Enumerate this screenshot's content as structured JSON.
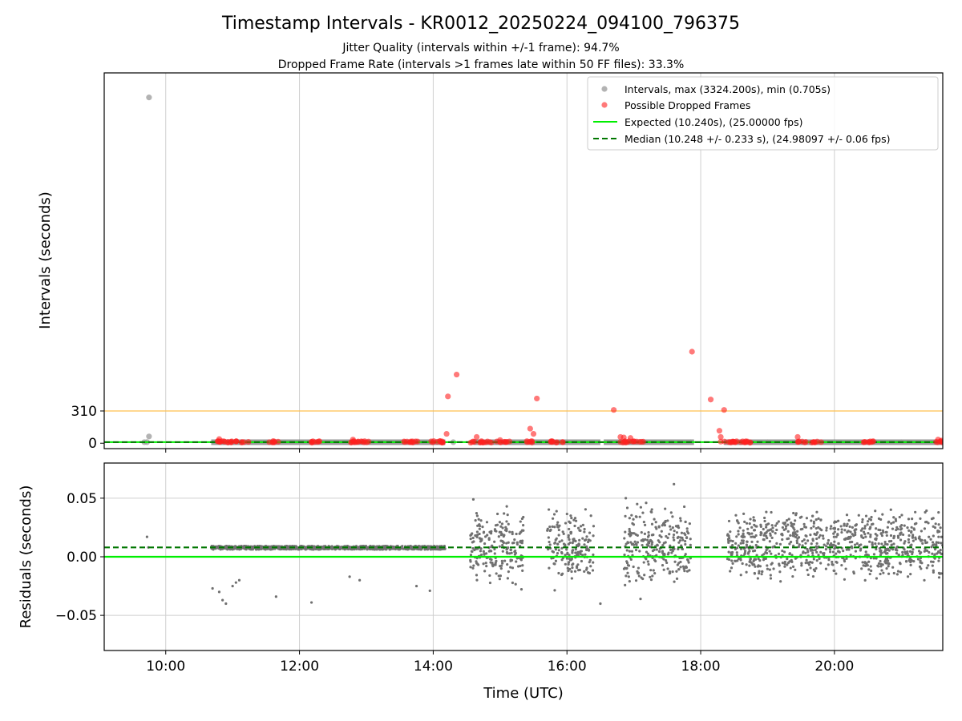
{
  "figure": {
    "title": "Timestamp Intervals - KR0012_20250224_094100_796375",
    "subtitle_1": "Jitter Quality (intervals within +/-1 frame): 94.7%",
    "subtitle_2": "Dropped Frame Rate (intervals >1 frames late within 50 FF files): 33.3%"
  },
  "chart_data": [
    {
      "type": "scatter",
      "name": "intervals",
      "xlabel": "",
      "ylabel": "Intervals (seconds)",
      "x_unit": "hours UTC",
      "xlim": [
        9.08,
        21.62
      ],
      "ylim": [
        -52,
        3560
      ],
      "yticks": [
        0,
        310
      ],
      "ytick_labels": [
        "0",
        "310"
      ],
      "threshold_line": {
        "y": 310,
        "color": "#ffc04d"
      },
      "grid": "x",
      "legend_position": "top-right",
      "series": [
        {
          "name": "Intervals, max (3324.200s), min (0.705s)",
          "color": "#999999",
          "points": [
            [
              9.75,
              3324.2
            ],
            [
              9.72,
              10.3
            ],
            [
              9.75,
              65.0
            ],
            [
              9.68,
              10.2
            ],
            [
              11.0,
              10.2
            ],
            [
              12.0,
              10.2
            ],
            [
              13.0,
              10.2
            ],
            [
              14.3,
              10.2
            ],
            [
              15.0,
              10.2
            ],
            [
              16.0,
              10.2
            ],
            [
              17.0,
              10.2
            ],
            [
              17.85,
              10.2
            ],
            [
              19.0,
              10.2
            ],
            [
              20.0,
              10.2
            ],
            [
              21.0,
              10.2
            ]
          ],
          "segments": [
            [
              10.68,
              14.18
            ],
            [
              14.6,
              16.5
            ],
            [
              16.55,
              17.9
            ],
            [
              18.35,
              21.62
            ]
          ]
        },
        {
          "name": "Possible Dropped Frames",
          "color": "#ff2020",
          "points": [
            [
              10.8,
              40
            ],
            [
              11.55,
              10
            ],
            [
              12.8,
              35
            ],
            [
              13.65,
              10
            ],
            [
              14.1,
              20
            ],
            [
              14.2,
              90
            ],
            [
              14.22,
              450
            ],
            [
              14.35,
              660
            ],
            [
              14.65,
              60
            ],
            [
              15.0,
              30
            ],
            [
              15.45,
              140
            ],
            [
              15.5,
              90
            ],
            [
              15.55,
              430
            ],
            [
              15.85,
              10
            ],
            [
              16.7,
              320
            ],
            [
              16.8,
              60
            ],
            [
              16.85,
              55
            ],
            [
              16.95,
              50
            ],
            [
              17.87,
              880
            ],
            [
              18.15,
              420
            ],
            [
              18.28,
              120
            ],
            [
              18.3,
              60
            ],
            [
              18.35,
              320
            ],
            [
              18.3,
              15
            ],
            [
              18.6,
              10
            ],
            [
              19.45,
              60
            ],
            [
              19.8,
              10
            ],
            [
              20.55,
              10
            ],
            [
              21.55,
              35
            ],
            [
              21.6,
              25
            ]
          ],
          "clusters": [
            [
              10.75,
              11.25
            ],
            [
              11.55,
              11.7
            ],
            [
              12.15,
              12.35
            ],
            [
              12.7,
              13.05
            ],
            [
              13.55,
              13.8
            ],
            [
              13.9,
              14.15
            ],
            [
              14.55,
              14.9
            ],
            [
              14.95,
              15.15
            ],
            [
              15.4,
              15.55
            ],
            [
              15.75,
              15.95
            ],
            [
              16.8,
              17.15
            ],
            [
              18.3,
              18.75
            ],
            [
              19.45,
              19.75
            ],
            [
              20.4,
              20.6
            ],
            [
              21.5,
              21.62
            ]
          ]
        },
        {
          "name": "Expected (10.240s), (25.00000 fps)",
          "color": "#00ee00",
          "y": 10.24,
          "style": "solid"
        },
        {
          "name": "Median (10.248 +/- 0.233 s), (24.98097 +/- 0.06 fps)",
          "color": "#007700",
          "y": 10.248,
          "style": "dashed"
        }
      ]
    },
    {
      "type": "scatter",
      "name": "residuals",
      "xlabel": "Time (UTC)",
      "ylabel": "Residuals (seconds)",
      "x_unit": "hours UTC",
      "xlim": [
        9.08,
        21.62
      ],
      "ylim": [
        -0.08,
        0.08
      ],
      "xticks": [
        10,
        12,
        14,
        16,
        18,
        20
      ],
      "xtick_labels": [
        "10:00",
        "12:00",
        "14:00",
        "16:00",
        "18:00",
        "20:00"
      ],
      "yticks": [
        0.05,
        0.0,
        -0.05
      ],
      "ytick_labels": [
        "0.05",
        "0.00",
        "−0.05"
      ],
      "grid": "both",
      "reference_lines": [
        {
          "label": "expected",
          "y": 0.0,
          "color": "#00ee00",
          "style": "solid"
        },
        {
          "label": "median",
          "y": 0.008,
          "color": "#007700",
          "style": "dashed"
        }
      ],
      "point_color": "#707070",
      "regions": [
        {
          "x": [
            10.68,
            14.18
          ],
          "center": 0.0077,
          "spread": 0.0015
        },
        {
          "x": [
            14.55,
            15.35
          ],
          "center": 0.008,
          "spread": 0.022
        },
        {
          "x": [
            15.7,
            16.4
          ],
          "center": 0.008,
          "spread": 0.022
        },
        {
          "x": [
            16.85,
            17.85
          ],
          "center": 0.008,
          "spread": 0.025
        },
        {
          "x": [
            18.4,
            21.62
          ],
          "center": 0.01,
          "spread": 0.018
        }
      ],
      "outliers": [
        [
          9.72,
          0.017
        ],
        [
          9.74,
          0.008
        ],
        [
          10.7,
          -0.027
        ],
        [
          10.8,
          -0.03
        ],
        [
          10.85,
          -0.037
        ],
        [
          10.9,
          -0.04
        ],
        [
          11.0,
          -0.025
        ],
        [
          11.05,
          -0.022
        ],
        [
          11.1,
          -0.02
        ],
        [
          11.65,
          -0.034
        ],
        [
          12.18,
          -0.039
        ],
        [
          12.75,
          -0.017
        ],
        [
          12.9,
          -0.02
        ],
        [
          13.75,
          -0.025
        ],
        [
          13.95,
          -0.029
        ],
        [
          14.6,
          0.049
        ],
        [
          15.1,
          0.043
        ],
        [
          16.88,
          0.05
        ],
        [
          17.05,
          0.045
        ],
        [
          17.6,
          0.062
        ],
        [
          16.5,
          -0.04
        ],
        [
          17.1,
          -0.036
        ]
      ]
    }
  ]
}
